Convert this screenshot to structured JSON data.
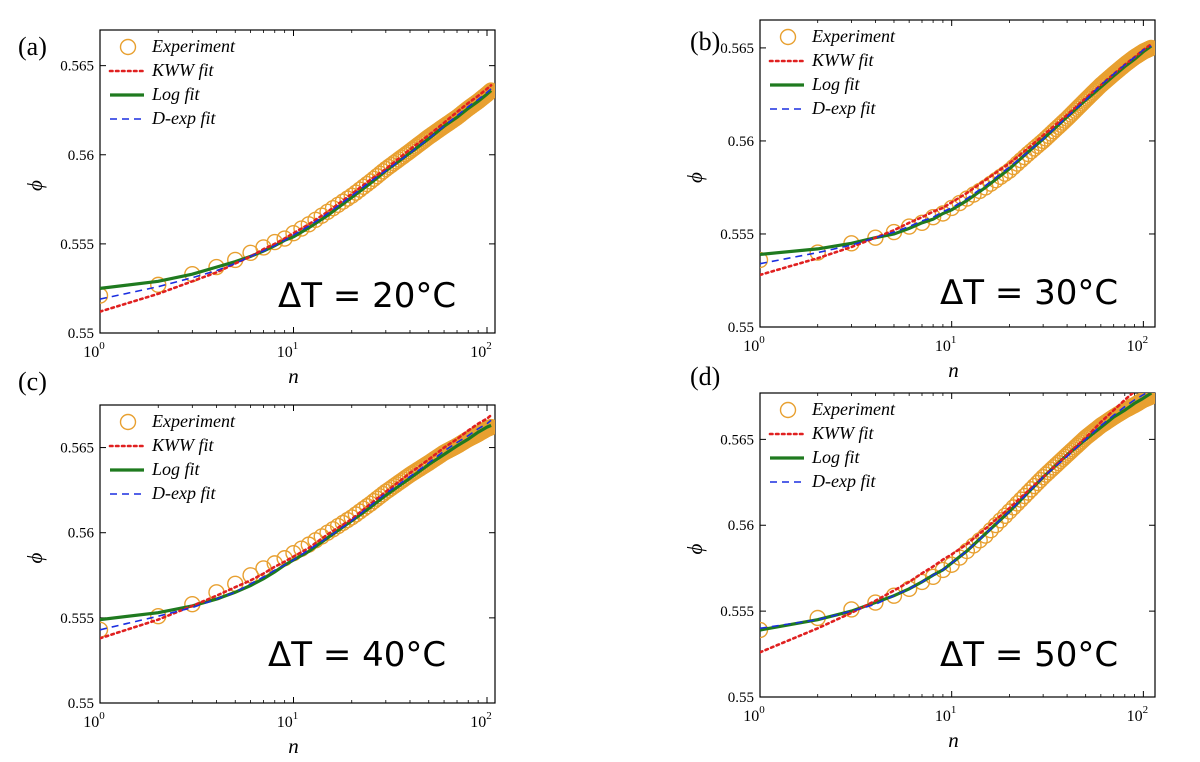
{
  "chart_data": [
    {
      "panel_label": "(a)",
      "type": "line",
      "annotation": "ΔT = 20°C",
      "xlabel": "n",
      "ylabel": "ϕ",
      "xscale": "log",
      "xlim": [
        1,
        110
      ],
      "ylim": [
        0.55,
        0.567
      ],
      "yticks": [
        "0.55",
        "0.555",
        "0.56",
        "0.565"
      ],
      "ytick_values": [
        0.55,
        0.555,
        0.56,
        0.565
      ],
      "legend": {
        "location": "top-left",
        "entries": [
          "Experiment",
          "KWW fit",
          "Log fit",
          "D-exp fit"
        ]
      },
      "x": [
        1,
        2,
        3,
        4,
        5,
        6,
        7,
        8,
        9,
        10,
        12,
        15,
        20,
        25,
        30,
        40,
        50,
        60,
        70,
        80,
        90,
        100,
        105
      ],
      "series": [
        {
          "name": "Experiment",
          "style": "markers",
          "values": [
            0.5521,
            0.5527,
            0.5533,
            0.5537,
            0.5541,
            0.5545,
            0.5548,
            0.5551,
            0.5553,
            0.5556,
            0.5561,
            0.5568,
            0.5577,
            0.5585,
            0.5592,
            0.5602,
            0.561,
            0.5616,
            0.5621,
            0.5626,
            0.563,
            0.5634,
            0.5636
          ]
        },
        {
          "name": "KWW fit",
          "style": "dotted",
          "values": [
            0.5512,
            0.5522,
            0.5529,
            0.5534,
            0.5539,
            0.5543,
            0.5547,
            0.555,
            0.5553,
            0.5556,
            0.5561,
            0.5568,
            0.5578,
            0.5586,
            0.5592,
            0.5603,
            0.5611,
            0.5618,
            0.5624,
            0.5629,
            0.5633,
            0.5637,
            0.5639
          ]
        },
        {
          "name": "Log fit",
          "style": "solid",
          "values": [
            0.5525,
            0.5529,
            0.5533,
            0.5537,
            0.554,
            0.5543,
            0.5546,
            0.5549,
            0.5552,
            0.5554,
            0.5559,
            0.5566,
            0.5576,
            0.5584,
            0.5591,
            0.5601,
            0.5609,
            0.5616,
            0.5621,
            0.5626,
            0.563,
            0.5634,
            0.5636
          ]
        },
        {
          "name": "D-exp fit",
          "style": "dashed",
          "values": [
            0.5519,
            0.5526,
            0.5531,
            0.5535,
            0.5539,
            0.5543,
            0.5546,
            0.5549,
            0.5552,
            0.5555,
            0.556,
            0.5567,
            0.5577,
            0.5585,
            0.5591,
            0.5601,
            0.5609,
            0.5616,
            0.5622,
            0.5627,
            0.5631,
            0.5635,
            0.5637
          ]
        }
      ]
    },
    {
      "panel_label": "(b)",
      "type": "line",
      "annotation": "ΔT = 30°C",
      "xlabel": "n",
      "ylabel": "ϕ",
      "xscale": "log",
      "xlim": [
        1,
        115
      ],
      "ylim": [
        0.55,
        0.5665
      ],
      "yticks": [
        "0.55",
        "0.555",
        "0.56",
        "0.565"
      ],
      "ytick_values": [
        0.55,
        0.555,
        0.56,
        0.565
      ],
      "legend": {
        "location": "top-left",
        "entries": [
          "Experiment",
          "KWW fit",
          "Log fit",
          "D-exp fit"
        ]
      },
      "x": [
        1,
        2,
        3,
        4,
        5,
        6,
        7,
        8,
        9,
        10,
        12,
        15,
        20,
        25,
        30,
        40,
        50,
        60,
        70,
        80,
        90,
        100,
        110
      ],
      "series": [
        {
          "name": "Experiment",
          "style": "markers",
          "values": [
            0.5536,
            0.554,
            0.5545,
            0.5548,
            0.5551,
            0.5554,
            0.5556,
            0.5559,
            0.5561,
            0.5564,
            0.5569,
            0.5575,
            0.5584,
            0.5593,
            0.56,
            0.5612,
            0.5622,
            0.563,
            0.5636,
            0.5641,
            0.5645,
            0.5648,
            0.565
          ]
        },
        {
          "name": "KWW fit",
          "style": "dotted",
          "values": [
            0.5528,
            0.5537,
            0.5543,
            0.5548,
            0.5552,
            0.5556,
            0.5559,
            0.5562,
            0.5564,
            0.5567,
            0.5572,
            0.5579,
            0.5588,
            0.5596,
            0.5603,
            0.5614,
            0.5623,
            0.563,
            0.5636,
            0.5641,
            0.5645,
            0.5649,
            0.5652
          ]
        },
        {
          "name": "Log fit",
          "style": "solid",
          "values": [
            0.5539,
            0.5542,
            0.5545,
            0.5548,
            0.555,
            0.5553,
            0.5556,
            0.5558,
            0.5561,
            0.5563,
            0.5568,
            0.5575,
            0.5585,
            0.5594,
            0.5601,
            0.5613,
            0.5622,
            0.5629,
            0.5635,
            0.564,
            0.5644,
            0.5648,
            0.5651
          ]
        },
        {
          "name": "D-exp fit",
          "style": "dashed",
          "values": [
            0.5534,
            0.554,
            0.5544,
            0.5548,
            0.5551,
            0.5554,
            0.5557,
            0.5559,
            0.5562,
            0.5564,
            0.5569,
            0.5576,
            0.5586,
            0.5594,
            0.5601,
            0.5613,
            0.5622,
            0.563,
            0.5636,
            0.5641,
            0.5645,
            0.5649,
            0.5651
          ]
        }
      ]
    },
    {
      "panel_label": "(c)",
      "type": "line",
      "annotation": "ΔT = 40°C",
      "xlabel": "n",
      "ylabel": "ϕ",
      "xscale": "log",
      "xlim": [
        1,
        110
      ],
      "ylim": [
        0.55,
        0.5675
      ],
      "yticks": [
        "0.55",
        "0.555",
        "0.56",
        "0.565"
      ],
      "ytick_values": [
        0.55,
        0.555,
        0.56,
        0.565
      ],
      "legend": {
        "location": "top-left",
        "entries": [
          "Experiment",
          "KWW fit",
          "Log fit",
          "D-exp fit"
        ]
      },
      "x": [
        1,
        2,
        3,
        4,
        5,
        6,
        7,
        8,
        9,
        10,
        12,
        15,
        20,
        25,
        30,
        40,
        50,
        60,
        70,
        80,
        90,
        100,
        105
      ],
      "series": [
        {
          "name": "Experiment",
          "style": "markers",
          "values": [
            0.5543,
            0.5551,
            0.5558,
            0.5565,
            0.557,
            0.5575,
            0.5579,
            0.5582,
            0.5585,
            0.5588,
            0.5593,
            0.56,
            0.5609,
            0.5617,
            0.5624,
            0.5634,
            0.5641,
            0.5647,
            0.5651,
            0.5655,
            0.5658,
            0.5661,
            0.5662
          ]
        },
        {
          "name": "KWW fit",
          "style": "dotted",
          "values": [
            0.5538,
            0.5549,
            0.5557,
            0.5563,
            0.5568,
            0.5572,
            0.5576,
            0.558,
            0.5583,
            0.5586,
            0.5591,
            0.5599,
            0.5608,
            0.5617,
            0.5624,
            0.5635,
            0.5643,
            0.565,
            0.5655,
            0.566,
            0.5664,
            0.5667,
            0.5669
          ]
        },
        {
          "name": "Log fit",
          "style": "solid",
          "values": [
            0.5549,
            0.5553,
            0.5557,
            0.5561,
            0.5565,
            0.5569,
            0.5573,
            0.5577,
            0.5581,
            0.5584,
            0.5589,
            0.5597,
            0.5607,
            0.5615,
            0.5622,
            0.5632,
            0.564,
            0.5646,
            0.5651,
            0.5655,
            0.5659,
            0.5662,
            0.5663
          ]
        },
        {
          "name": "D-exp fit",
          "style": "dashed",
          "values": [
            0.5543,
            0.5551,
            0.5556,
            0.5561,
            0.5565,
            0.557,
            0.5574,
            0.5578,
            0.5581,
            0.5584,
            0.559,
            0.5597,
            0.5607,
            0.5616,
            0.5623,
            0.5633,
            0.5641,
            0.5648,
            0.5653,
            0.5657,
            0.5661,
            0.5664,
            0.5666
          ]
        }
      ]
    },
    {
      "panel_label": "(d)",
      "type": "line",
      "annotation": "ΔT = 50°C",
      "xlabel": "n",
      "ylabel": "ϕ",
      "xscale": "log",
      "xlim": [
        1,
        115
      ],
      "ylim": [
        0.55,
        0.5677
      ],
      "yticks": [
        "0.55",
        "0.555",
        "0.56",
        "0.565"
      ],
      "ytick_values": [
        0.55,
        0.555,
        0.56,
        0.565
      ],
      "legend": {
        "location": "top-left",
        "entries": [
          "Experiment",
          "KWW fit",
          "Log fit",
          "D-exp fit"
        ]
      },
      "x": [
        1,
        2,
        3,
        4,
        5,
        6,
        7,
        8,
        9,
        10,
        12,
        15,
        20,
        25,
        30,
        40,
        50,
        60,
        70,
        80,
        90,
        100,
        110
      ],
      "series": [
        {
          "name": "Experiment",
          "style": "markers",
          "values": [
            0.5539,
            0.5546,
            0.5551,
            0.5555,
            0.5559,
            0.5563,
            0.5567,
            0.557,
            0.5574,
            0.5577,
            0.5585,
            0.5594,
            0.5608,
            0.5619,
            0.5628,
            0.5641,
            0.5651,
            0.5658,
            0.5663,
            0.5667,
            0.567,
            0.5673,
            0.5675
          ]
        },
        {
          "name": "KWW fit",
          "style": "dotted",
          "values": [
            0.5526,
            0.554,
            0.5549,
            0.5556,
            0.5562,
            0.5567,
            0.5572,
            0.5576,
            0.558,
            0.5583,
            0.5589,
            0.5598,
            0.561,
            0.562,
            0.5628,
            0.5641,
            0.5651,
            0.566,
            0.5667,
            0.5673,
            0.5678,
            0.5683,
            0.5687
          ]
        },
        {
          "name": "Log fit",
          "style": "solid",
          "values": [
            0.5539,
            0.5545,
            0.555,
            0.5555,
            0.5559,
            0.5563,
            0.5567,
            0.5571,
            0.5574,
            0.5578,
            0.5585,
            0.5595,
            0.5608,
            0.5619,
            0.5628,
            0.5641,
            0.565,
            0.5657,
            0.5663,
            0.5667,
            0.5671,
            0.5674,
            0.5677
          ]
        },
        {
          "name": "D-exp fit",
          "style": "dashed",
          "values": [
            0.554,
            0.5545,
            0.555,
            0.5554,
            0.5559,
            0.5563,
            0.5567,
            0.5571,
            0.5574,
            0.5578,
            0.5585,
            0.5595,
            0.5608,
            0.5619,
            0.5628,
            0.564,
            0.565,
            0.5658,
            0.5664,
            0.5669,
            0.5673,
            0.5676,
            0.5679
          ]
        }
      ]
    }
  ],
  "colors": {
    "experiment": "#e8a030",
    "kww": "#e02020",
    "log": "#1f7a1f",
    "dexp": "#1a2ee0",
    "axis": "#000000"
  }
}
